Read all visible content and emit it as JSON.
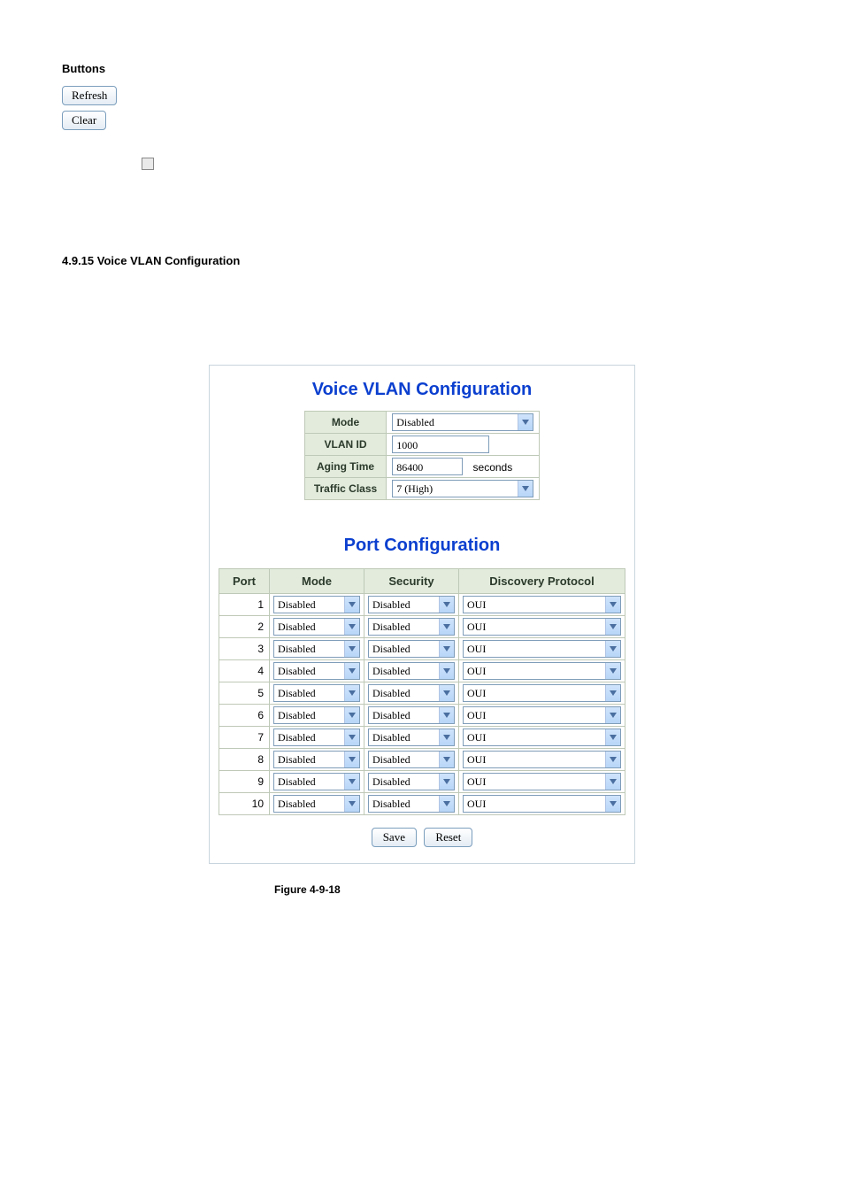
{
  "buttons_section": {
    "heading": "Buttons",
    "refresh_label": "Refresh",
    "clear_label": "Clear"
  },
  "section_heading": "4.9.15 Voice VLAN Configuration",
  "voice_vlan": {
    "title": "Voice VLAN Configuration",
    "rows": {
      "mode_label": "Mode",
      "mode_value": "Disabled",
      "vlan_id_label": "VLAN ID",
      "vlan_id_value": "1000",
      "aging_time_label": "Aging Time",
      "aging_time_value": "86400",
      "aging_time_unit": "seconds",
      "traffic_class_label": "Traffic Class",
      "traffic_class_value": "7 (High)"
    }
  },
  "port_config": {
    "title": "Port Configuration",
    "headers": {
      "port": "Port",
      "mode": "Mode",
      "security": "Security",
      "discovery": "Discovery Protocol"
    },
    "value_mode": "Disabled",
    "value_security": "Disabled",
    "value_discovery": "OUI",
    "ports": [
      "1",
      "2",
      "3",
      "4",
      "5",
      "6",
      "7",
      "8",
      "9",
      "10"
    ]
  },
  "actions": {
    "save": "Save",
    "reset": "Reset"
  },
  "figure_caption": "Figure 4-9-18",
  "colors": {
    "title_blue": "#0b3fcf",
    "th_bg": "#e2ebdc",
    "th_border": "#bfc9b7",
    "box_border": "#c9d5de",
    "select_border": "#7f9db9"
  }
}
